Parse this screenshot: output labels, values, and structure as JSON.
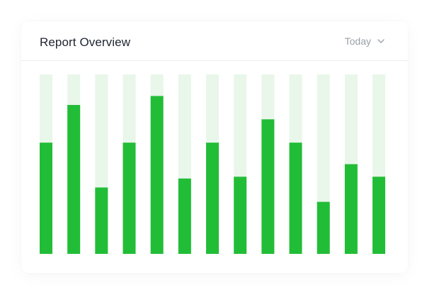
{
  "header": {
    "title": "Report Overview",
    "period": {
      "selected": "Today",
      "icon": "chevron-down-icon"
    }
  },
  "colors": {
    "bar": "#22bd37",
    "track": "#e9f6ea",
    "title": "#1f2430",
    "muted": "#9aa0a8"
  },
  "chart_data": {
    "type": "bar",
    "stacked_track": true,
    "grid": false,
    "legend": "none",
    "ylim": [
      0,
      100
    ],
    "values": [
      62,
      83,
      37,
      62,
      88,
      42,
      62,
      43,
      75,
      62,
      29,
      50,
      43
    ]
  }
}
